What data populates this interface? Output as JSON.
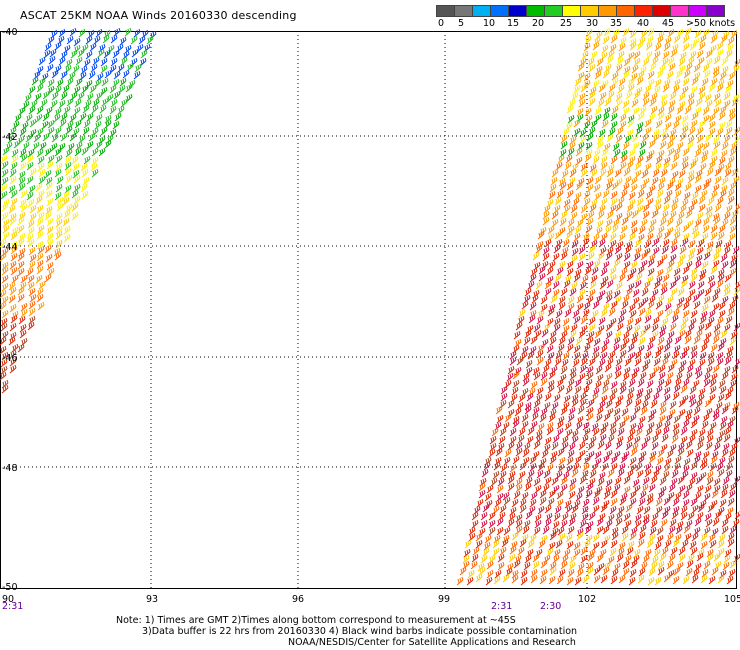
{
  "title": "ASCAT 25KM NOAA Winds 20160330 descending",
  "legend": {
    "labels": [
      "0",
      "5",
      "10",
      "15",
      "20",
      "25",
      "30",
      "35",
      "40",
      "45",
      ">50 knots"
    ],
    "colors": [
      "#555555",
      "#777777",
      "#00b0f0",
      "#0070ff",
      "#0000cc",
      "#00bb00",
      "#22cc22",
      "#ffff00",
      "#ffcc00",
      "#ff9900",
      "#ff6600",
      "#ff2200",
      "#dd0000",
      "#ff33cc",
      "#cc00ff",
      "#8800cc"
    ]
  },
  "map": {
    "lon_labels": [
      "90",
      "93",
      "96",
      "99",
      "102",
      "105"
    ],
    "lat_labels": [
      "-40",
      "-42",
      "-44",
      "-46",
      "-48",
      "-50"
    ],
    "times": [
      "2:31",
      "2:31",
      "2:30"
    ]
  },
  "notes": {
    "line1": "Note: 1) Times are GMT 2)Times along bottom correspond to measurement at ~45S",
    "line2": "3)Data buffer is 22 hrs from 20160330 4) Black wind barbs indicate possible contamination",
    "line3": "NOAA/NESDIS/Center for Satellite Applications and Research"
  }
}
